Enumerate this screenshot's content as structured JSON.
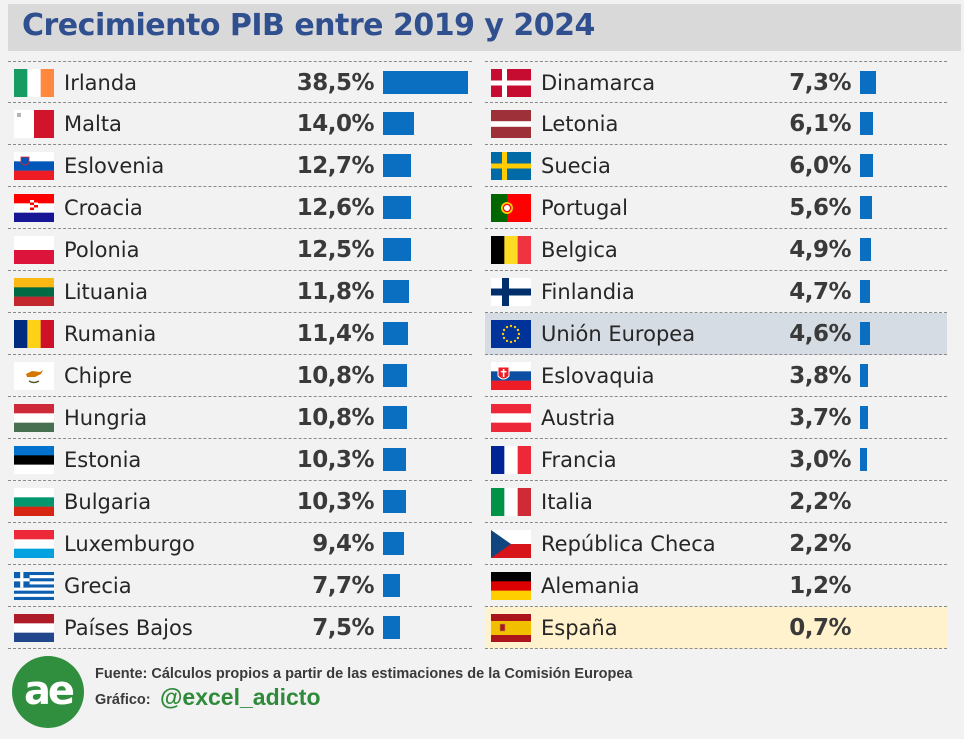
{
  "title": "Crecimiento PIB entre 2019 y 2024",
  "chart_data": {
    "type": "bar",
    "orientation": "horizontal",
    "title": "Crecimiento PIB entre 2019 y 2024",
    "unit": "%",
    "series": [
      {
        "values": [
          38.5,
          14.0,
          12.7,
          12.6,
          12.5,
          11.8,
          11.4,
          10.8,
          10.8,
          10.3,
          10.3,
          9.4,
          7.7,
          7.5,
          7.3,
          6.1,
          6.0,
          5.6,
          4.9,
          4.7,
          4.6,
          3.8,
          3.7,
          3.0,
          2.2,
          2.2,
          1.2,
          0.7
        ]
      }
    ],
    "rows": [
      {
        "name": "Irlanda",
        "value": 38.5,
        "label": "38,5%",
        "flag": "ireland-flag-icon"
      },
      {
        "name": "Malta",
        "value": 14.0,
        "label": "14,0%",
        "flag": "malta-flag-icon"
      },
      {
        "name": "Eslovenia",
        "value": 12.7,
        "label": "12,7%",
        "flag": "slovenia-flag-icon"
      },
      {
        "name": "Croacia",
        "value": 12.6,
        "label": "12,6%",
        "flag": "croatia-flag-icon"
      },
      {
        "name": "Polonia",
        "value": 12.5,
        "label": "12,5%",
        "flag": "poland-flag-icon"
      },
      {
        "name": "Lituania",
        "value": 11.8,
        "label": "11,8%",
        "flag": "lithuania-flag-icon"
      },
      {
        "name": "Rumania",
        "value": 11.4,
        "label": "11,4%",
        "flag": "romania-flag-icon"
      },
      {
        "name": "Chipre",
        "value": 10.8,
        "label": "10,8%",
        "flag": "cyprus-flag-icon"
      },
      {
        "name": "Hungria",
        "value": 10.8,
        "label": "10,8%",
        "flag": "hungary-flag-icon"
      },
      {
        "name": "Estonia",
        "value": 10.3,
        "label": "10,3%",
        "flag": "estonia-flag-icon"
      },
      {
        "name": "Bulgaria",
        "value": 10.3,
        "label": "10,3%",
        "flag": "bulgaria-flag-icon"
      },
      {
        "name": "Luxemburgo",
        "value": 9.4,
        "label": "9,4%",
        "flag": "luxembourg-flag-icon"
      },
      {
        "name": "Grecia",
        "value": 7.7,
        "label": "7,7%",
        "flag": "greece-flag-icon"
      },
      {
        "name": "Países Bajos",
        "value": 7.5,
        "label": "7,5%",
        "flag": "netherlands-flag-icon"
      },
      {
        "name": "Dinamarca",
        "value": 7.3,
        "label": "7,3%",
        "flag": "denmark-flag-icon"
      },
      {
        "name": "Letonia",
        "value": 6.1,
        "label": "6,1%",
        "flag": "latvia-flag-icon"
      },
      {
        "name": "Suecia",
        "value": 6.0,
        "label": "6,0%",
        "flag": "sweden-flag-icon"
      },
      {
        "name": "Portugal",
        "value": 5.6,
        "label": "5,6%",
        "flag": "portugal-flag-icon"
      },
      {
        "name": "Belgica",
        "value": 4.9,
        "label": "4,9%",
        "flag": "belgium-flag-icon"
      },
      {
        "name": "Finlandia",
        "value": 4.7,
        "label": "4,7%",
        "flag": "finland-flag-icon"
      },
      {
        "name": "Unión Europea",
        "value": 4.6,
        "label": "4,6%",
        "flag": "eu-flag-icon",
        "highlight": "#d6dce4"
      },
      {
        "name": "Eslovaquia",
        "value": 3.8,
        "label": "3,8%",
        "flag": "slovakia-flag-icon"
      },
      {
        "name": "Austria",
        "value": 3.7,
        "label": "3,7%",
        "flag": "austria-flag-icon"
      },
      {
        "name": "Francia",
        "value": 3.0,
        "label": "3,0%",
        "flag": "france-flag-icon"
      },
      {
        "name": "Italia",
        "value": 2.2,
        "label": "2,2%",
        "flag": "italy-flag-icon"
      },
      {
        "name": "República Checa",
        "value": 2.2,
        "label": "2,2%",
        "flag": "czechia-flag-icon"
      },
      {
        "name": "Alemania",
        "value": 1.2,
        "label": "1,2%",
        "flag": "germany-flag-icon"
      },
      {
        "name": "España",
        "value": 0.7,
        "label": "0,7%",
        "flag": "spain-flag-icon",
        "highlight": "#fff2cc"
      }
    ],
    "colors": {
      "bar": "#0b6fc1",
      "title": "#2f4f8f",
      "eu_highlight": "#d6dce4",
      "spain_highlight": "#fff2cc"
    }
  },
  "footer": {
    "source": "Fuente: Cálculos propios a partir de las estimaciones de la Comisión Europea",
    "credit_label": "Gráfico:",
    "credit_handle": "@excel_adicto",
    "logo_text": "ae"
  }
}
